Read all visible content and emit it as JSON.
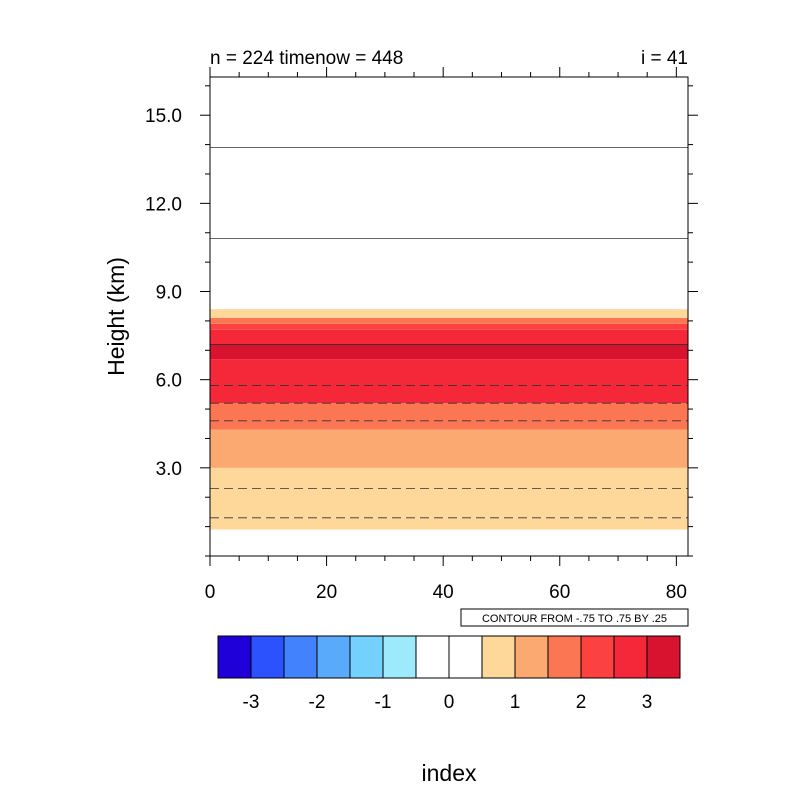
{
  "chart_data": {
    "type": "contour",
    "title_left": "n = 224 timenow = 448",
    "title_right": "i = 41",
    "xlabel": "index",
    "ylabel": "Height (km)",
    "xlim": [
      0,
      82
    ],
    "ylim": [
      0,
      16.3
    ],
    "x_ticks": [
      "0",
      "20",
      "40",
      "60",
      "80"
    ],
    "x_tick_values": [
      0,
      20,
      40,
      60,
      80
    ],
    "y_ticks": [
      "3.0",
      "6.0",
      "9.0",
      "12.0",
      "15.0"
    ],
    "y_tick_values": [
      3,
      6,
      9,
      12,
      15
    ],
    "info_label": "CONTOUR FROM -.75 TO .75 BY .25",
    "bands": [
      {
        "y0": 0.9,
        "y1": 1.3,
        "color": "#fed89a"
      },
      {
        "y0": 1.3,
        "y1": 3.0,
        "color": "#fed89a"
      },
      {
        "y0": 3.0,
        "y1": 4.3,
        "color": "#fca871"
      },
      {
        "y0": 4.3,
        "y1": 5.2,
        "color": "#fb7754"
      },
      {
        "y0": 5.2,
        "y1": 6.7,
        "color": "#f5283a"
      },
      {
        "y0": 6.7,
        "y1": 7.2,
        "color": "#d7132f"
      },
      {
        "y0": 7.2,
        "y1": 7.7,
        "color": "#f5283a"
      },
      {
        "y0": 7.7,
        "y1": 7.9,
        "color": "#fb4240"
      },
      {
        "y0": 7.9,
        "y1": 8.1,
        "color": "#fb7754"
      },
      {
        "y0": 8.1,
        "y1": 8.4,
        "color": "#fed89a"
      }
    ],
    "contour_lines": [
      {
        "y": 1.3,
        "style": "dashed"
      },
      {
        "y": 2.3,
        "style": "dashed"
      },
      {
        "y": 4.6,
        "style": "dashed"
      },
      {
        "y": 5.2,
        "style": "dashed"
      },
      {
        "y": 5.8,
        "style": "dashed"
      },
      {
        "y": 7.2,
        "style": "solid"
      },
      {
        "y": 10.8,
        "style": "solid"
      },
      {
        "y": 13.9,
        "style": "solid"
      }
    ],
    "colorbar": {
      "colors": [
        "#1f00d9",
        "#2b52fc",
        "#4282fc",
        "#5aaafc",
        "#74d0fc",
        "#9ceafc",
        "#ffffff",
        "#ffffff",
        "#fed89a",
        "#fca871",
        "#fb7754",
        "#fb4240",
        "#f5283a",
        "#d7132f"
      ],
      "labels": [
        "-3",
        "-2",
        "-1",
        "0",
        "1",
        "2",
        "3"
      ],
      "label_values": [
        -3,
        -2,
        -1,
        0,
        1,
        2,
        3
      ]
    }
  }
}
